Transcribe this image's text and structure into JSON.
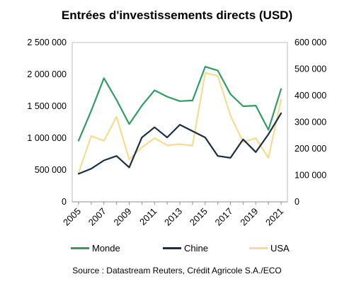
{
  "chart_data": {
    "type": "line",
    "title": "Entrées d'investissements directs (USD)",
    "x": [
      "2005",
      "2006",
      "2007",
      "2008",
      "2009",
      "2010",
      "2011",
      "2012",
      "2013",
      "2014",
      "2015",
      "2016",
      "2017",
      "2018",
      "2019",
      "2020",
      "2021"
    ],
    "x_tick_labels": [
      "2005",
      "2007",
      "2009",
      "2011",
      "2013",
      "2015",
      "2017",
      "2019",
      "2021"
    ],
    "y_left": {
      "ylim": [
        0,
        2500000
      ],
      "ticks": [
        "0",
        "500 000",
        "1 000 000",
        "1 500 000",
        "2 000 000",
        "2 500 000"
      ]
    },
    "y_right": {
      "ylim": [
        0,
        600000
      ],
      "ticks": [
        "0",
        "100 000",
        "200 000",
        "300 000",
        "400 000",
        "500 000",
        "600 000"
      ]
    },
    "series": [
      {
        "name": "Monde",
        "axis": "left",
        "color": "#2e9e63",
        "values": [
          960000,
          1430000,
          1940000,
          1600000,
          1220000,
          1510000,
          1750000,
          1650000,
          1580000,
          1590000,
          2120000,
          2060000,
          1690000,
          1500000,
          1510000,
          1130000,
          1770000
        ]
      },
      {
        "name": "Chine",
        "axis": "left",
        "color": "#1a2f45",
        "values": [
          440000,
          520000,
          650000,
          720000,
          540000,
          1010000,
          1170000,
          1010000,
          1210000,
          1110000,
          1010000,
          720000,
          690000,
          980000,
          780000,
          1060000,
          1390000
        ]
      },
      {
        "name": "USA",
        "axis": "right",
        "color": "#f7dc90",
        "values": [
          110000,
          248000,
          230000,
          320000,
          160000,
          205000,
          240000,
          213000,
          217000,
          212000,
          485000,
          475000,
          325000,
          225000,
          240000,
          165000,
          385000
        ]
      }
    ],
    "legend_position": "bottom",
    "grid": false
  },
  "source": "Source : Datastream Reuters, Crédit Agricole S.A./ECO"
}
